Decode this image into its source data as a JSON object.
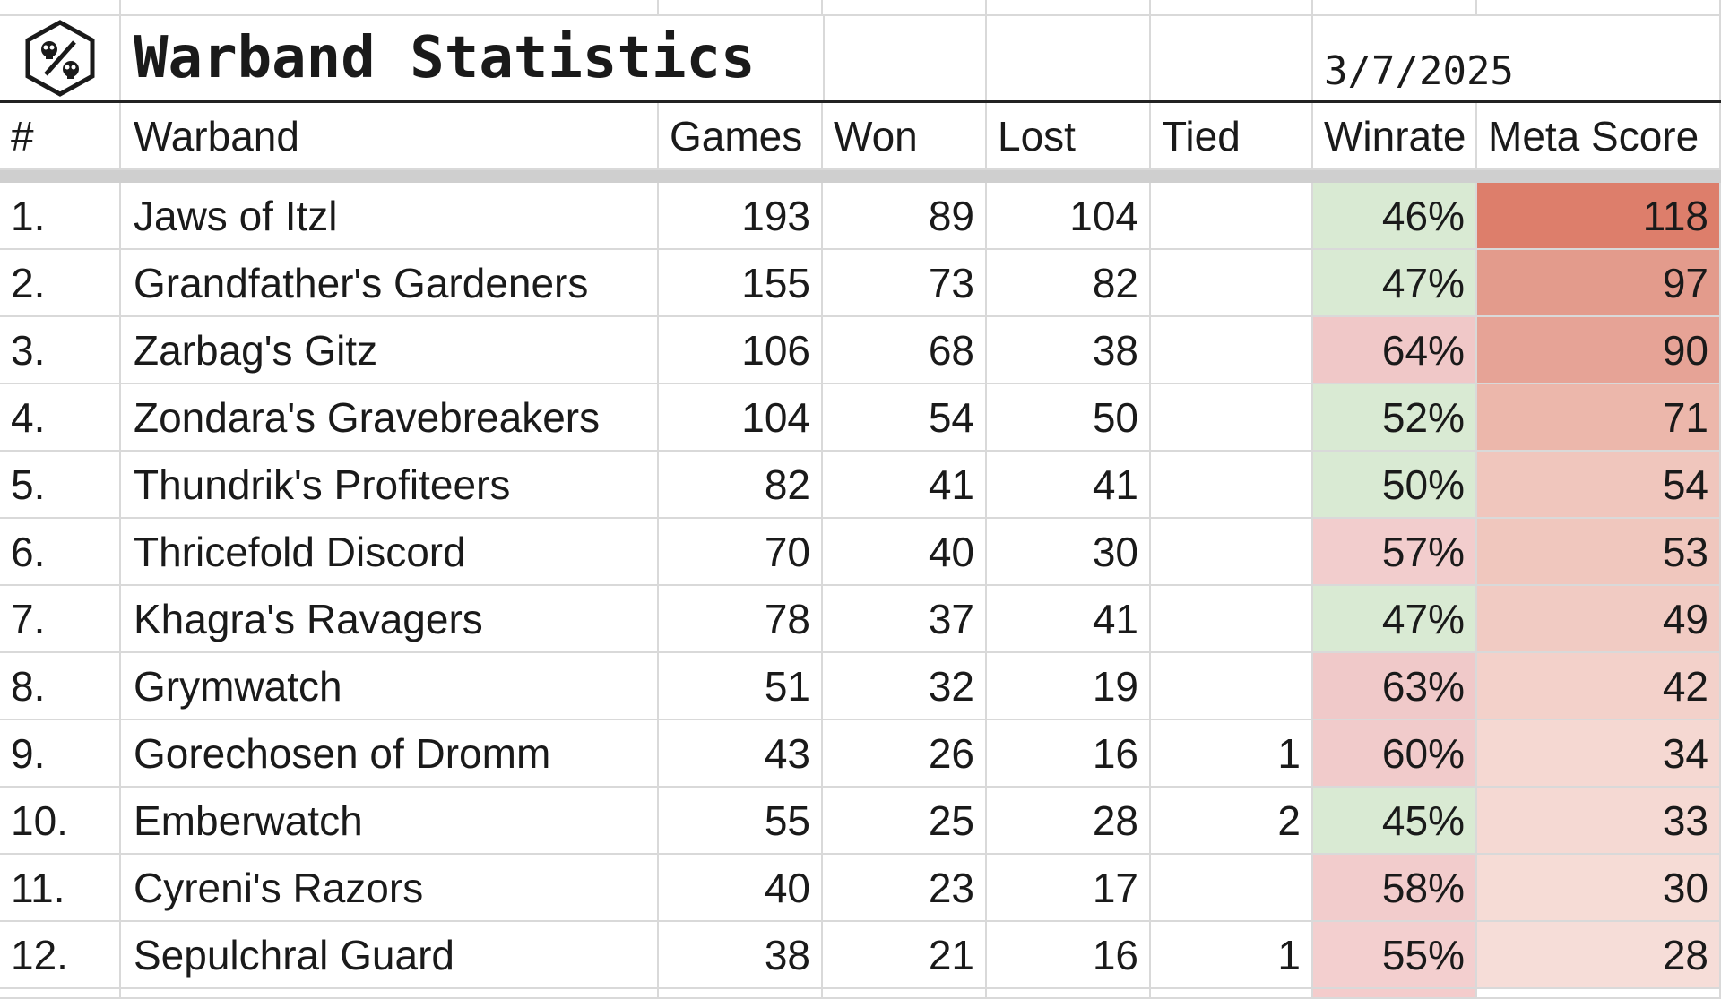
{
  "sheet": {
    "title": "Warband Statistics",
    "date": "3/7/2025",
    "logo_icon": "hex-skulls-percent-icon",
    "headers": [
      "#",
      "Warband",
      "Games",
      "Won",
      "Lost",
      "Tied",
      "Winrate",
      "Meta Score"
    ],
    "colors": {
      "green": "#d9ead3",
      "pink_light": "#f4cccc",
      "red_dark": "#dd7e6b"
    },
    "rows": [
      {
        "rank": "1.",
        "name": "Jaws of Itzl",
        "games": "193",
        "won": "89",
        "lost": "104",
        "tied": "",
        "winrate": "46%",
        "winrate_color": "#d9ead3",
        "meta": "118",
        "meta_color": "#dd7e6b"
      },
      {
        "rank": "2.",
        "name": "Grandfather's Gardeners",
        "games": "155",
        "won": "73",
        "lost": "82",
        "tied": "",
        "winrate": "47%",
        "winrate_color": "#d9ead3",
        "meta": "97",
        "meta_color": "#e39b8c"
      },
      {
        "rank": "3.",
        "name": "Zarbag's Gitz",
        "games": "106",
        "won": "68",
        "lost": "38",
        "tied": "",
        "winrate": "64%",
        "winrate_color": "#f0c8c8",
        "meta": "90",
        "meta_color": "#e6a396"
      },
      {
        "rank": "4.",
        "name": "Zondara's Gravebreakers",
        "games": "104",
        "won": "54",
        "lost": "50",
        "tied": "",
        "winrate": "52%",
        "winrate_color": "#d9ead3",
        "meta": "71",
        "meta_color": "#ecb7ab"
      },
      {
        "rank": "5.",
        "name": "Thundrik's Profiteers",
        "games": "82",
        "won": "41",
        "lost": "41",
        "tied": "",
        "winrate": "50%",
        "winrate_color": "#d9ead3",
        "meta": "54",
        "meta_color": "#f0c6bd"
      },
      {
        "rank": "6.",
        "name": "Thricefold Discord",
        "games": "70",
        "won": "40",
        "lost": "30",
        "tied": "",
        "winrate": "57%",
        "winrate_color": "#f2cdcd",
        "meta": "53",
        "meta_color": "#f0c7be"
      },
      {
        "rank": "7.",
        "name": "Khagra's Ravagers",
        "games": "78",
        "won": "37",
        "lost": "41",
        "tied": "",
        "winrate": "47%",
        "winrate_color": "#d9ead3",
        "meta": "49",
        "meta_color": "#f1cbc3"
      },
      {
        "rank": "8.",
        "name": "Grymwatch",
        "games": "51",
        "won": "32",
        "lost": "19",
        "tied": "",
        "winrate": "63%",
        "winrate_color": "#f0c9c9",
        "meta": "42",
        "meta_color": "#f3d1ca"
      },
      {
        "rank": "9.",
        "name": "Gorechosen of Dromm",
        "games": "43",
        "won": "26",
        "lost": "16",
        "tied": "1",
        "winrate": "60%",
        "winrate_color": "#f1cbcb",
        "meta": "34",
        "meta_color": "#f5d8d2"
      },
      {
        "rank": "10.",
        "name": "Emberwatch",
        "games": "55",
        "won": "25",
        "lost": "28",
        "tied": "2",
        "winrate": "45%",
        "winrate_color": "#d9ead3",
        "meta": "33",
        "meta_color": "#f5d9d3"
      },
      {
        "rank": "11.",
        "name": "Cyreni's Razors",
        "games": "40",
        "won": "23",
        "lost": "17",
        "tied": "",
        "winrate": "58%",
        "winrate_color": "#f2cccc",
        "meta": "30",
        "meta_color": "#f6dcd6"
      },
      {
        "rank": "12.",
        "name": "Sepulchral Guard",
        "games": "38",
        "won": "21",
        "lost": "16",
        "tied": "1",
        "winrate": "55%",
        "winrate_color": "#f3cfcf",
        "meta": "28",
        "meta_color": "#f6ddd8"
      }
    ]
  }
}
